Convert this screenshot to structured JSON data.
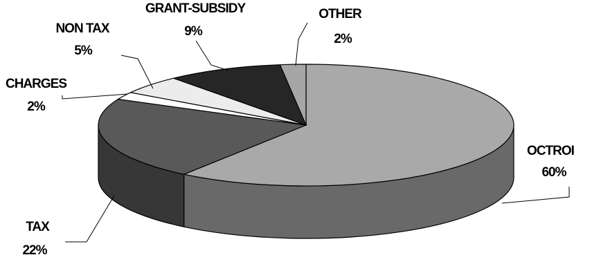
{
  "chart_data": {
    "type": "pie",
    "style": "3d",
    "slices": [
      {
        "label": "OCTROI",
        "pct_text": "60%",
        "value": 60,
        "color": "#a9a9a9"
      },
      {
        "label": "TAX",
        "pct_text": "22%",
        "value": 22,
        "color": "#595959"
      },
      {
        "label": "CHARGES",
        "pct_text": "2%",
        "value": 2,
        "color": "#ffffff"
      },
      {
        "label": "NON TAX",
        "pct_text": "5%",
        "value": 5,
        "color": "#ececec"
      },
      {
        "label": "GRANT-SUBSIDY",
        "pct_text": "9%",
        "value": 9,
        "color": "#262626"
      },
      {
        "label": "OTHER",
        "pct_text": "2%",
        "value": 2,
        "color": "#a6a6a6"
      }
    ]
  }
}
